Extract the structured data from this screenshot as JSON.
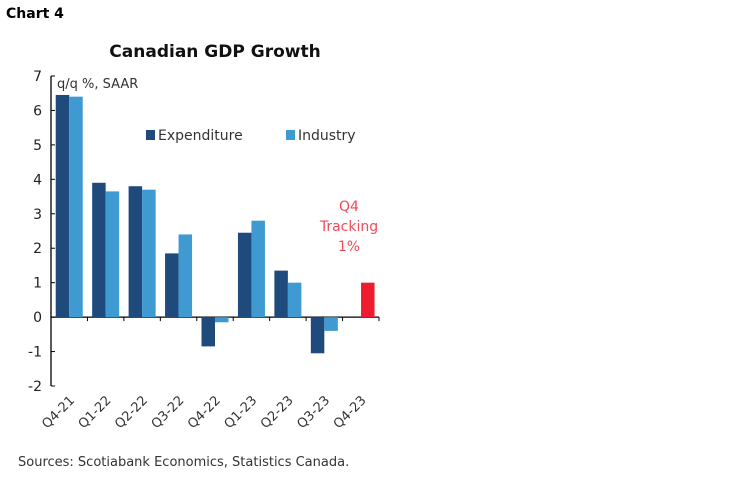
{
  "chart_label": "Chart 4",
  "source": "Sources: Scotiabank Economics, Statistics Canada.",
  "chart_data": {
    "type": "bar",
    "title": "Canadian GDP Growth",
    "ylabel": "q/q %, SAAR",
    "ylim": [
      -2,
      7
    ],
    "yticks": [
      -2,
      -1,
      0,
      1,
      2,
      3,
      4,
      5,
      6,
      7
    ],
    "categories": [
      "Q4-21",
      "Q1-22",
      "Q2-22",
      "Q3-22",
      "Q4-22",
      "Q1-23",
      "Q2-23",
      "Q3-23",
      "Q4-23"
    ],
    "series": [
      {
        "name": "Expenditure",
        "color": "#1f4a7c",
        "values": [
          6.45,
          3.9,
          3.8,
          1.85,
          -0.85,
          2.45,
          1.35,
          -1.05,
          null
        ]
      },
      {
        "name": "Industry",
        "color": "#3e9ad0",
        "values": [
          6.4,
          3.65,
          3.7,
          2.4,
          -0.15,
          2.8,
          1.0,
          -0.4,
          null
        ]
      },
      {
        "name": "",
        "color": "#ee1c2e",
        "values": [
          null,
          null,
          null,
          null,
          null,
          null,
          null,
          null,
          1.0
        ]
      }
    ],
    "annotation": {
      "lines": [
        "Q4",
        "Tracking",
        "1%"
      ],
      "color": "#f04a5a"
    },
    "legend_position": "top-center",
    "grid": false
  }
}
